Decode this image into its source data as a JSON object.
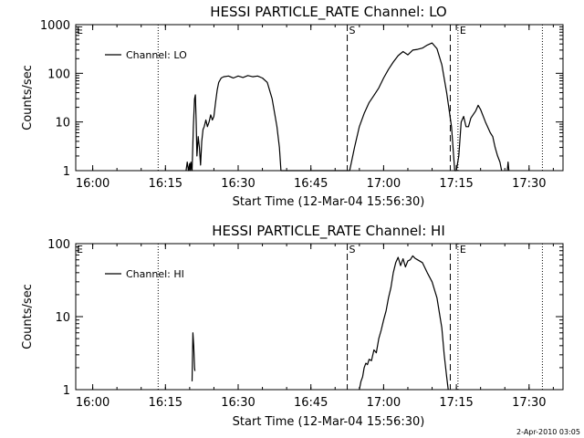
{
  "stamp": "2-Apr-2010 03:05",
  "chart_data": [
    {
      "type": "line",
      "title": "HESSI PARTICLE_RATE Channel: LO",
      "xlabel": "Start Time (12-Mar-04 15:56:30)",
      "ylabel": "Counts/sec",
      "yscale": "log",
      "ylim": [
        1,
        1000
      ],
      "xlim": [
        "15:56:30",
        "17:37:00"
      ],
      "xticks": [
        "16:00",
        "16:15",
        "16:30",
        "16:45",
        "17:00",
        "17:15",
        "17:30"
      ],
      "yticks": [
        "1",
        "10",
        "100",
        "1000"
      ],
      "legend": "top-left",
      "series": [
        {
          "name": "Channel: LO",
          "points": [
            [
              "16:19:15",
              1
            ],
            [
              "16:19:30",
              1.5
            ],
            [
              "16:19:45",
              1
            ],
            [
              "16:20:00",
              1.4
            ],
            [
              "16:20:10",
              1
            ],
            [
              "16:20:15",
              1.5
            ],
            [
              "16:20:30",
              1
            ],
            [
              "16:20:45",
              8
            ],
            [
              "16:21:00",
              30
            ],
            [
              "16:21:10",
              36
            ],
            [
              "16:21:20",
              10
            ],
            [
              "16:21:30",
              2
            ],
            [
              "16:21:45",
              5
            ],
            [
              "16:22:00",
              3
            ],
            [
              "16:22:15",
              1.3
            ],
            [
              "16:22:30",
              4
            ],
            [
              "16:22:45",
              7
            ],
            [
              "16:23:00",
              8
            ],
            [
              "16:23:20",
              11
            ],
            [
              "16:23:40",
              8
            ],
            [
              "16:24:00",
              10
            ],
            [
              "16:24:20",
              14
            ],
            [
              "16:24:40",
              11
            ],
            [
              "16:25:00",
              13
            ],
            [
              "16:25:20",
              25
            ],
            [
              "16:25:40",
              45
            ],
            [
              "16:26:00",
              65
            ],
            [
              "16:26:30",
              80
            ],
            [
              "16:27:00",
              85
            ],
            [
              "16:28:00",
              88
            ],
            [
              "16:29:00",
              80
            ],
            [
              "16:30:00",
              88
            ],
            [
              "16:31:00",
              82
            ],
            [
              "16:32:00",
              90
            ],
            [
              "16:33:00",
              85
            ],
            [
              "16:34:00",
              88
            ],
            [
              "16:35:00",
              80
            ],
            [
              "16:36:00",
              65
            ],
            [
              "16:37:00",
              30
            ],
            [
              "16:38:00",
              8
            ],
            [
              "16:38:30",
              3
            ],
            [
              "16:38:50",
              1
            ],
            [
              "16:53:00",
              1
            ],
            [
              "16:54:00",
              3
            ],
            [
              "16:55:00",
              8
            ],
            [
              "16:56:00",
              15
            ],
            [
              "16:57:00",
              25
            ],
            [
              "16:58:00",
              35
            ],
            [
              "16:59:00",
              50
            ],
            [
              "17:00:00",
              80
            ],
            [
              "17:01:00",
              120
            ],
            [
              "17:02:00",
              170
            ],
            [
              "17:03:00",
              230
            ],
            [
              "17:04:00",
              280
            ],
            [
              "17:05:00",
              240
            ],
            [
              "17:06:00",
              300
            ],
            [
              "17:07:00",
              310
            ],
            [
              "17:08:00",
              330
            ],
            [
              "17:09:00",
              380
            ],
            [
              "17:10:00",
              420
            ],
            [
              "17:11:00",
              320
            ],
            [
              "17:12:00",
              150
            ],
            [
              "17:13:00",
              40
            ],
            [
              "17:14:00",
              8
            ],
            [
              "17:14:40",
              1
            ],
            [
              "17:15:00",
              1
            ],
            [
              "17:15:30",
              2
            ],
            [
              "17:16:00",
              10
            ],
            [
              "17:16:30",
              13
            ],
            [
              "17:17:00",
              8
            ],
            [
              "17:17:30",
              8
            ],
            [
              "17:18:00",
              12
            ],
            [
              "17:19:00",
              17
            ],
            [
              "17:19:30",
              22
            ],
            [
              "17:20:00",
              18
            ],
            [
              "17:21:00",
              10
            ],
            [
              "17:22:00",
              6
            ],
            [
              "17:22:30",
              5
            ],
            [
              "17:23:00",
              3
            ],
            [
              "17:23:30",
              2
            ],
            [
              "17:24:00",
              1.5
            ],
            [
              "17:24:20",
              1
            ]
          ]
        },
        {
          "points": [
            [
              "17:25:30",
              1
            ],
            [
              "17:25:40",
              1.5
            ],
            [
              "17:25:50",
              1
            ]
          ]
        }
      ],
      "markers": [
        {
          "label": "",
          "time": "16:13:30",
          "style": "dotted"
        },
        {
          "label": "S",
          "time": "16:52:30",
          "style": "dashed"
        },
        {
          "label": "",
          "time": "17:13:45",
          "style": "dashed"
        },
        {
          "label": "E",
          "time": "17:15:20",
          "style": "dotted"
        },
        {
          "label": "",
          "time": "17:32:45",
          "style": "dotted"
        }
      ],
      "corner_marks": [
        {
          "label": "E",
          "side": "left"
        }
      ]
    },
    {
      "type": "line",
      "title": "HESSI PARTICLE_RATE Channel: HI",
      "xlabel": "Start Time (12-Mar-04 15:56:30)",
      "ylabel": "Counts/sec",
      "yscale": "log",
      "ylim": [
        1,
        100
      ],
      "xlim": [
        "15:56:30",
        "17:37:00"
      ],
      "xticks": [
        "16:00",
        "16:15",
        "16:30",
        "16:45",
        "17:00",
        "17:15",
        "17:30"
      ],
      "yticks": [
        "1",
        "10",
        "100"
      ],
      "legend": "top-left",
      "series": [
        {
          "name": "Channel: HI",
          "points": [
            [
              "16:20:30",
              1.3
            ],
            [
              "16:20:40",
              6
            ],
            [
              "16:20:50",
              4
            ],
            [
              "16:21:00",
              2
            ],
            [
              "16:21:05",
              1.8
            ]
          ]
        },
        {
          "points": [
            [
              "16:55:00",
              1
            ],
            [
              "16:55:20",
              1.3
            ],
            [
              "16:55:40",
              1.5
            ],
            [
              "16:56:00",
              2
            ],
            [
              "16:56:20",
              2.3
            ],
            [
              "16:56:40",
              2.2
            ],
            [
              "16:57:00",
              2.6
            ],
            [
              "16:57:30",
              2.5
            ],
            [
              "16:58:00",
              3.5
            ],
            [
              "16:58:30",
              3.2
            ],
            [
              "16:59:00",
              5
            ],
            [
              "16:59:30",
              6.5
            ],
            [
              "17:00:00",
              9
            ],
            [
              "17:00:30",
              12
            ],
            [
              "17:01:00",
              18
            ],
            [
              "17:01:30",
              25
            ],
            [
              "17:02:00",
              40
            ],
            [
              "17:02:30",
              55
            ],
            [
              "17:03:00",
              65
            ],
            [
              "17:03:30",
              50
            ],
            [
              "17:04:00",
              62
            ],
            [
              "17:04:30",
              48
            ],
            [
              "17:05:00",
              58
            ],
            [
              "17:05:30",
              60
            ],
            [
              "17:06:00",
              68
            ],
            [
              "17:06:30",
              63
            ],
            [
              "17:07:00",
              60
            ],
            [
              "17:08:00",
              55
            ],
            [
              "17:09:00",
              40
            ],
            [
              "17:10:00",
              30
            ],
            [
              "17:11:00",
              18
            ],
            [
              "17:12:00",
              7
            ],
            [
              "17:12:30",
              3
            ],
            [
              "17:13:00",
              1.5
            ],
            [
              "17:13:20",
              1
            ]
          ]
        }
      ],
      "markers": [
        {
          "label": "",
          "time": "16:13:30",
          "style": "dotted"
        },
        {
          "label": "S",
          "time": "16:52:30",
          "style": "dashed"
        },
        {
          "label": "",
          "time": "17:13:45",
          "style": "dashed"
        },
        {
          "label": "E",
          "time": "17:15:20",
          "style": "dotted"
        },
        {
          "label": "",
          "time": "17:32:45",
          "style": "dotted"
        }
      ],
      "corner_marks": [
        {
          "label": "E",
          "side": "left"
        }
      ]
    }
  ]
}
